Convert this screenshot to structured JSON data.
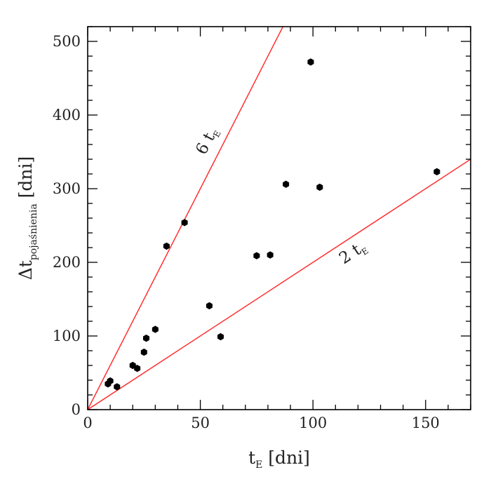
{
  "chart_data": {
    "type": "scatter",
    "xlabel": "t",
    "xlabel_sub": "E",
    "xlabel_unit": " [dni]",
    "ylabel": "Δt",
    "ylabel_sub": "pojaśnienia",
    "ylabel_unit": " [dni]",
    "xlim": [
      0,
      170
    ],
    "ylim": [
      0,
      520
    ],
    "xticks": [
      0,
      50,
      100,
      150
    ],
    "yticks": [
      0,
      100,
      200,
      300,
      400,
      500
    ],
    "grid": false,
    "colors": {
      "points": "#000000",
      "lines": "#ff3030",
      "axes": "#000000"
    },
    "points": [
      {
        "x": 9,
        "y": 35
      },
      {
        "x": 10,
        "y": 39
      },
      {
        "x": 13,
        "y": 31
      },
      {
        "x": 20,
        "y": 60
      },
      {
        "x": 22,
        "y": 56
      },
      {
        "x": 25,
        "y": 78
      },
      {
        "x": 26,
        "y": 97
      },
      {
        "x": 30,
        "y": 109
      },
      {
        "x": 35,
        "y": 222
      },
      {
        "x": 43,
        "y": 254
      },
      {
        "x": 54,
        "y": 141
      },
      {
        "x": 59,
        "y": 99
      },
      {
        "x": 75,
        "y": 209
      },
      {
        "x": 81,
        "y": 210
      },
      {
        "x": 88,
        "y": 306
      },
      {
        "x": 99,
        "y": 472
      },
      {
        "x": 103,
        "y": 302
      },
      {
        "x": 155,
        "y": 323
      }
    ],
    "reference_lines": [
      {
        "slope": 6,
        "label_prefix": "6 t",
        "label_sub": "E"
      },
      {
        "slope": 2,
        "label_prefix": "2 t",
        "label_sub": "E"
      }
    ]
  }
}
